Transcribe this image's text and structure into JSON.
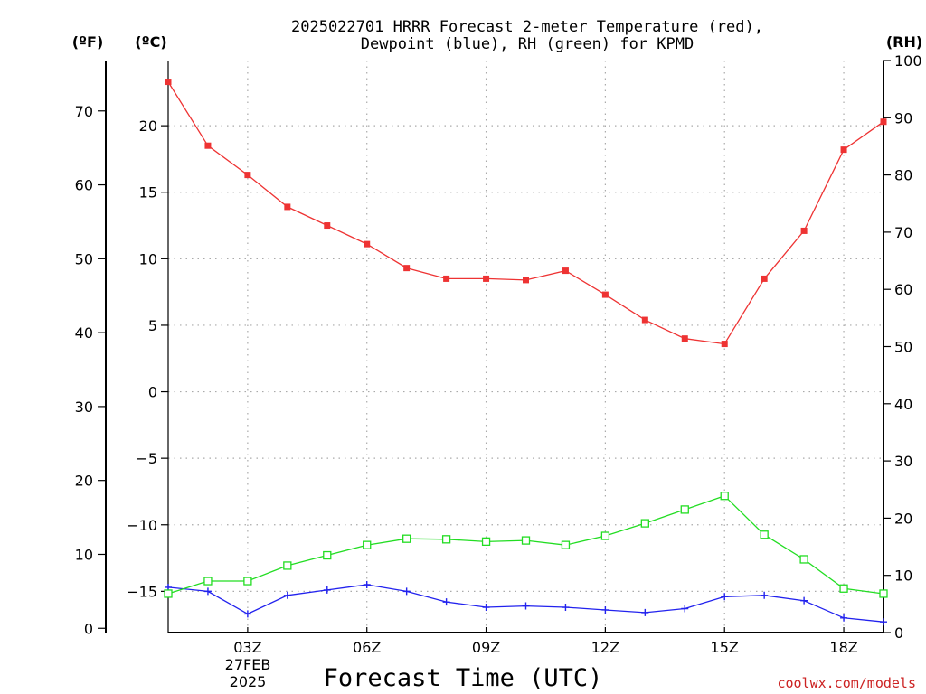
{
  "title_line1": "2025022701 HRRR Forecast 2-meter Temperature (red),",
  "title_line2": "Dewpoint (blue), RH (green) for KPMD",
  "units": {
    "f": "(ºF)",
    "c": "(ºC)",
    "rh": "(RH)"
  },
  "xlabel": "Forecast Time (UTC)",
  "date_label": [
    "27FEB",
    "2025"
  ],
  "credit": "coolwx.com/models",
  "chart_data": {
    "type": "line",
    "title": "2025022701 HRRR Forecast 2-meter Temperature (red), Dewpoint (blue), RH (green) for KPMD",
    "xlabel": "Forecast Time (UTC)",
    "x": [
      1,
      2,
      3,
      4,
      5,
      6,
      7,
      8,
      9,
      10,
      11,
      12,
      13,
      14,
      15,
      16,
      17,
      18,
      19
    ],
    "xlim": [
      1,
      19
    ],
    "xticks": [
      3,
      6,
      9,
      12,
      15,
      18
    ],
    "xtick_labels": [
      "03Z",
      "06Z",
      "09Z",
      "12Z",
      "15Z",
      "18Z"
    ],
    "celsius_axis": {
      "label": "(ºC)",
      "ylim": [
        -18.1,
        24.9
      ],
      "ticks": [
        -15,
        -10,
        -5,
        0,
        5,
        10,
        15,
        20
      ]
    },
    "fahrenheit_axis": {
      "label": "(ºF)",
      "ticks": [
        0,
        10,
        20,
        30,
        40,
        50,
        60,
        70
      ]
    },
    "rh_axis": {
      "label": "(RH)",
      "ylim": [
        0,
        100
      ],
      "ticks": [
        0,
        10,
        20,
        30,
        40,
        50,
        60,
        70,
        80,
        90,
        100
      ]
    },
    "grid": true,
    "series": [
      {
        "name": "Temperature",
        "color": "#ee3333",
        "marker": "filled-square",
        "axis": "celsius",
        "values": [
          23.3,
          18.5,
          16.3,
          13.9,
          12.5,
          11.1,
          9.3,
          8.5,
          8.5,
          8.4,
          9.1,
          7.3,
          5.4,
          4.0,
          3.6,
          8.5,
          12.1,
          18.2,
          20.3
        ]
      },
      {
        "name": "Dewpoint",
        "color": "#2222ee",
        "marker": "plus",
        "axis": "celsius",
        "values": [
          -14.7,
          -15.0,
          -16.7,
          -15.3,
          -14.9,
          -14.5,
          -15.0,
          -15.8,
          -16.2,
          -16.1,
          -16.2,
          -16.4,
          -16.6,
          -16.3,
          -15.4,
          -15.3,
          -15.7,
          -17.0,
          -17.3
        ]
      },
      {
        "name": "RH",
        "color": "#22dd22",
        "marker": "open-square",
        "axis": "rh",
        "values": [
          6.8,
          9.0,
          9.0,
          11.7,
          13.5,
          15.3,
          16.4,
          16.3,
          15.9,
          16.1,
          15.3,
          16.9,
          19.1,
          21.5,
          23.9,
          17.1,
          12.8,
          7.7,
          6.8
        ]
      }
    ]
  }
}
